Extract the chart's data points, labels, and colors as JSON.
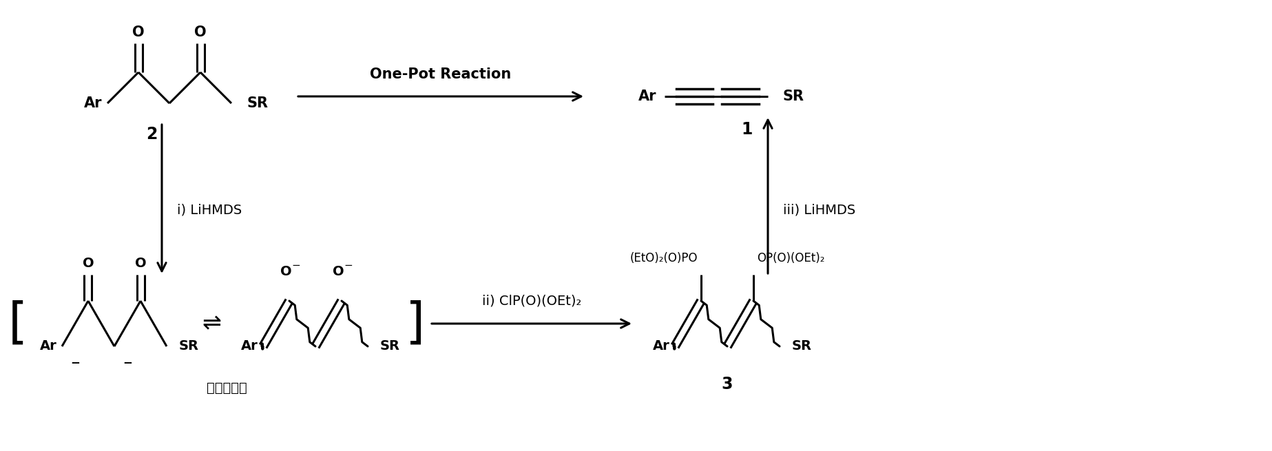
{
  "bg": "#ffffff",
  "figsize": [
    18.47,
    6.55
  ],
  "dpi": 100,
  "top_arrow_label": "One-Pot Reaction",
  "step_i": "i) LiHMDS",
  "step_ii": "ii) ClP(O)(OEt)₂",
  "step_iii": "iii) LiHMDS",
  "num2": "2",
  "num1": "1",
  "num3": "3",
  "enolate": "烯醒负离子",
  "lw": 2.2,
  "fs": 15,
  "fsl": 14,
  "fsn": 17
}
